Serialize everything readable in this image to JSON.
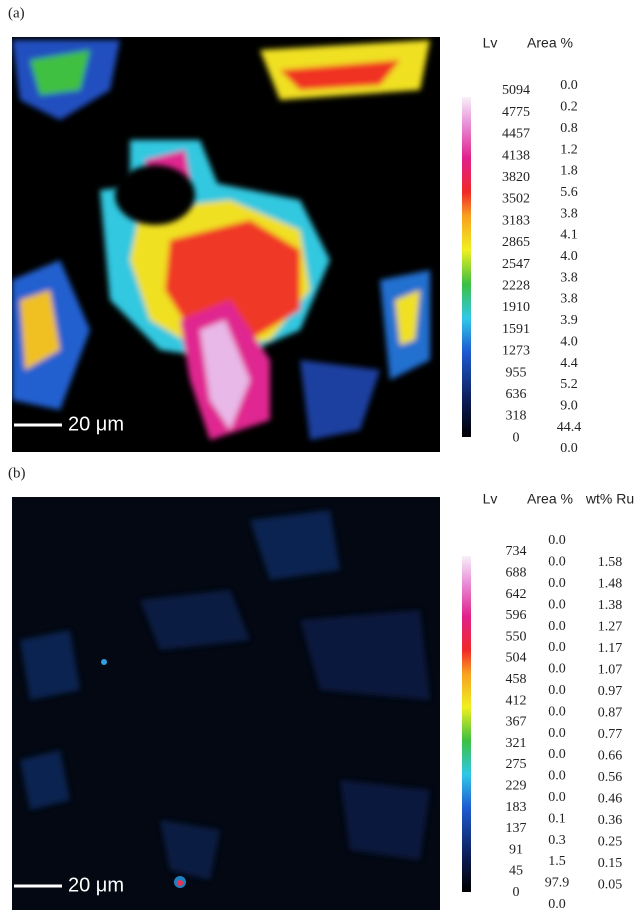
{
  "panels": [
    {
      "label": "(a)",
      "scale_bar": "20 μm",
      "headers": [
        "Lv",
        "Area %"
      ],
      "levels": [
        "5094",
        "4775",
        "4457",
        "4138",
        "3820",
        "3502",
        "3183",
        "2865",
        "2547",
        "2228",
        "1910",
        "1591",
        "1273",
        "955",
        "636",
        "318",
        "0"
      ],
      "columns": [
        [
          "0.0",
          "0.2",
          "0.8",
          "1.2",
          "1.8",
          "5.6",
          "3.8",
          "4.1",
          "4.0",
          "3.8",
          "3.8",
          "3.9",
          "4.0",
          "4.4",
          "5.2",
          "9.0",
          "44.4",
          "0.0"
        ]
      ]
    },
    {
      "label": "(b)",
      "scale_bar": "20 μm",
      "headers": [
        "Lv",
        "Area %",
        "wt% Ru"
      ],
      "levels": [
        "734",
        "688",
        "642",
        "596",
        "550",
        "504",
        "458",
        "412",
        "367",
        "321",
        "275",
        "229",
        "183",
        "137",
        "91",
        "45",
        "0"
      ],
      "columns": [
        [
          "0.0",
          "0.0",
          "0.0",
          "0.0",
          "0.0",
          "0.0",
          "0.0",
          "0.0",
          "0.0",
          "0.0",
          "0.0",
          "0.0",
          "0.0",
          "0.1",
          "0.3",
          "1.5",
          "97.9",
          "0.0"
        ],
        [
          "1.58",
          "1.48",
          "1.38",
          "1.27",
          "1.17",
          "1.07",
          "0.97",
          "0.87",
          "0.77",
          "0.66",
          "0.56",
          "0.46",
          "0.36",
          "0.25",
          "0.15",
          "0.05"
        ]
      ]
    }
  ]
}
